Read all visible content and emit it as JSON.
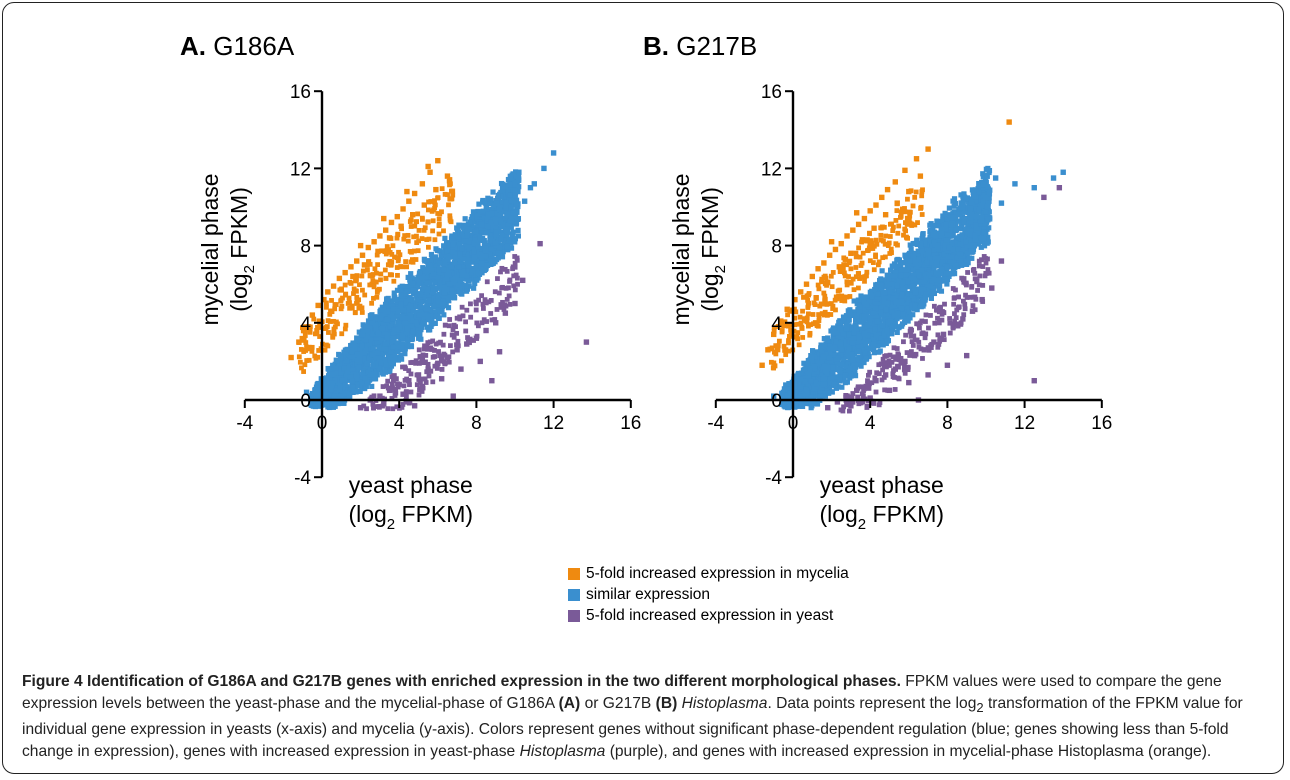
{
  "chart_data": [
    {
      "type": "scatter",
      "panel_letter": "A.",
      "panel_name": "G186A",
      "xlabel": "yeast phase",
      "xlabel_unit": "(log",
      "xlabel_unit_sub": "2",
      "xlabel_unit_end": " FPKM)",
      "ylabel": "mycelial phase",
      "ylabel_unit": "(log",
      "ylabel_unit_sub": "2",
      "ylabel_unit_end": " FPKM)",
      "xlim": [
        -4,
        16
      ],
      "ylim": [
        -4,
        16
      ],
      "x_ticks": [
        -4,
        0,
        4,
        8,
        12,
        16
      ],
      "y_ticks": [
        -4,
        0,
        4,
        8,
        12,
        16
      ],
      "grid": false,
      "series": [
        {
          "name": "5-fold increased expression in mycelia",
          "color": "#ef8a10",
          "values_x": [
            -1.6,
            -1.2,
            -0.9,
            -0.5,
            -0.2,
            0.1,
            0.3,
            0.6,
            0.9,
            1.2,
            1.5,
            1.8,
            2.1,
            2.4,
            2.7,
            3.0,
            3.3,
            3.6,
            3.9,
            4.2,
            4.5,
            4.8,
            5.2,
            5.6,
            6.0,
            0.5,
            1.0,
            1.6,
            2.2,
            2.9,
            3.5,
            4.1,
            4.7,
            5.3,
            5.9,
            6.5,
            2.0,
            3.2,
            4.4,
            5.5
          ],
          "values_y": [
            2.2,
            3.0,
            3.6,
            4.4,
            4.9,
            5.2,
            5.6,
            5.9,
            6.3,
            6.6,
            6.9,
            7.2,
            7.5,
            7.9,
            8.2,
            8.5,
            8.8,
            9.2,
            9.5,
            9.9,
            10.3,
            10.7,
            11.2,
            11.8,
            12.4,
            4.6,
            5.7,
            6.4,
            7.0,
            7.7,
            8.4,
            9.0,
            9.6,
            10.1,
            10.9,
            11.6,
            8.0,
            9.4,
            10.8,
            12.1
          ]
        },
        {
          "name": "similar expression",
          "color": "#3a8fcf",
          "values_x": [
            -0.8,
            10.5,
            11.0,
            11.5,
            12.0,
            10.2,
            9.8,
            10.8
          ],
          "values_y": [
            0.4,
            10.3,
            11.2,
            12.0,
            12.8,
            11.8,
            10.0,
            11.0
          ]
        },
        {
          "name": "5-fold increased expression in yeast",
          "color": "#7a5a98",
          "values_x": [
            2.0,
            2.5,
            3.0,
            3.5,
            4.0,
            4.5,
            5.0,
            5.5,
            6.0,
            6.5,
            7.0,
            7.5,
            8.0,
            8.5,
            9.0,
            9.5,
            10.0,
            3.2,
            4.2,
            5.2,
            6.2,
            7.2,
            8.2,
            9.2,
            10.4,
            11.3,
            13.7,
            6.8,
            8.8,
            4.8
          ],
          "values_y": [
            -0.4,
            0.0,
            0.2,
            0.5,
            0.8,
            1.0,
            1.3,
            1.6,
            1.9,
            2.2,
            2.6,
            2.9,
            3.2,
            3.6,
            4.0,
            4.5,
            5.0,
            -0.2,
            0.3,
            0.7,
            1.1,
            1.6,
            2.0,
            2.5,
            6.2,
            8.1,
            3.0,
            0.2,
            1.0,
            -0.3
          ]
        }
      ]
    },
    {
      "type": "scatter",
      "panel_letter": "B.",
      "panel_name": "G217B",
      "xlabel": "yeast phase",
      "xlabel_unit": "(log",
      "xlabel_unit_sub": "2",
      "xlabel_unit_end": " FPKM)",
      "ylabel": "mycelial phase",
      "ylabel_unit": "(log",
      "ylabel_unit_sub": "2",
      "ylabel_unit_end": " FPKM)",
      "xlim": [
        -4,
        16
      ],
      "ylim": [
        -4,
        16
      ],
      "x_ticks": [
        -4,
        0,
        4,
        8,
        12,
        16
      ],
      "y_ticks": [
        -4,
        0,
        4,
        8,
        12,
        16
      ],
      "grid": false,
      "series": [
        {
          "name": "5-fold increased expression in mycelia",
          "color": "#ef8a10",
          "values_x": [
            -1.6,
            -1.3,
            -1.0,
            -0.6,
            -0.3,
            0.1,
            0.4,
            0.7,
            1.0,
            1.3,
            1.6,
            1.9,
            2.2,
            2.5,
            2.8,
            3.1,
            3.4,
            3.7,
            4.0,
            4.3,
            4.6,
            4.9,
            5.3,
            5.8,
            6.4,
            7.0,
            11.2,
            0.6,
            1.2,
            1.8,
            2.4,
            3.0,
            3.6,
            4.2,
            4.8,
            5.4,
            6.0,
            6.6,
            2.0,
            3.3
          ],
          "values_y": [
            1.8,
            2.6,
            3.4,
            4.0,
            4.7,
            5.2,
            5.6,
            6.0,
            6.4,
            6.8,
            7.1,
            7.5,
            7.8,
            8.1,
            8.5,
            8.8,
            9.1,
            9.4,
            9.8,
            10.1,
            10.5,
            10.9,
            11.3,
            11.9,
            12.5,
            13.0,
            14.4,
            4.2,
            5.3,
            6.1,
            6.9,
            7.6,
            8.3,
            8.9,
            9.6,
            10.2,
            10.8,
            11.6,
            8.2,
            9.7
          ]
        },
        {
          "name": "similar expression",
          "color": "#3a8fcf",
          "values_x": [
            -1.0,
            10.0,
            10.5,
            11.5,
            12.5,
            13.5,
            14.0,
            9.5,
            10.8
          ],
          "values_y": [
            0.2,
            10.5,
            11.5,
            11.2,
            11.0,
            11.5,
            11.8,
            9.5,
            10.2
          ]
        },
        {
          "name": "5-fold increased expression in yeast",
          "color": "#7a5a98",
          "values_x": [
            1.8,
            2.3,
            2.8,
            3.3,
            3.8,
            4.3,
            4.8,
            5.3,
            5.8,
            6.3,
            6.8,
            7.3,
            7.8,
            8.3,
            8.8,
            9.3,
            9.8,
            10.3,
            10.8,
            3.0,
            4.0,
            5.0,
            6.0,
            7.0,
            8.0,
            9.0,
            13.0,
            13.8,
            12.5,
            6.5
          ],
          "values_y": [
            -0.4,
            -0.1,
            0.2,
            0.5,
            0.7,
            1.0,
            1.3,
            1.6,
            2.0,
            2.3,
            2.6,
            3.0,
            3.4,
            3.8,
            4.2,
            4.6,
            5.2,
            5.8,
            7.2,
            -0.3,
            0.1,
            0.5,
            0.9,
            1.3,
            1.8,
            2.3,
            10.5,
            11.0,
            1.0,
            0.0
          ]
        }
      ]
    }
  ],
  "legend": [
    {
      "label": "5-fold increased expression in mycelia",
      "color": "#ef8a10"
    },
    {
      "label": "similar expression",
      "color": "#3a8fcf"
    },
    {
      "label": "5-fold increased expression in yeast",
      "color": "#7a5a98"
    }
  ],
  "caption": {
    "title": "Figure 4 Identification of G186A and G217B genes with enriched expression in the two different morphological phases.",
    "p1": " FPKM values were used to compare the gene expression levels between the yeast-phase and the mycelial-phase of G186A ",
    "p1_b1": "(A)",
    "p2": " or G217B ",
    "p2_b1": "(B)",
    "p2_it": " Histoplasma",
    "p3": ". Data points represent the log",
    "p3_sub": "2",
    "p4": " transformation of the FPKM value for individual gene expression in yeasts (x-axis) and mycelia (y-axis). Colors represent genes without significant phase-dependent regulation (blue; genes showing less than 5-fold change in expression), genes with increased expression in yeast-phase ",
    "p4_it": "Histoplasma",
    "p5": " (purple), and genes with increased expression in mycelial-phase Histoplasma (orange)."
  }
}
